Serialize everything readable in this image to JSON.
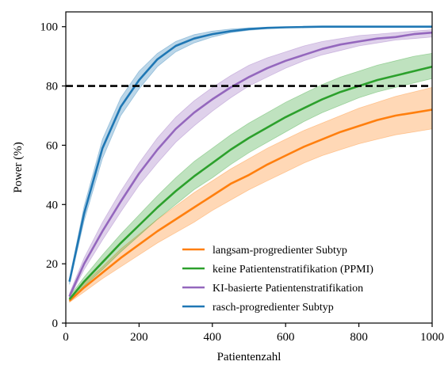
{
  "chart_data": {
    "type": "line",
    "xlabel": "Patientenzahl",
    "ylabel": "Power (%)",
    "xlim": [
      0,
      1000
    ],
    "ylim": [
      0,
      105
    ],
    "x_ticks": [
      0,
      200,
      400,
      600,
      800,
      1000
    ],
    "y_ticks": [
      0,
      20,
      40,
      60,
      80,
      100
    ],
    "grid": false,
    "legend_position": "lower-right",
    "reference_line": {
      "y": 80,
      "style": "dashed",
      "color": "#000000"
    },
    "series": [
      {
        "name": "langsam-progredienter Subtyp",
        "color": "#ff7f0e",
        "x": [
          10,
          50,
          100,
          150,
          200,
          250,
          300,
          350,
          400,
          450,
          500,
          550,
          600,
          650,
          700,
          750,
          800,
          850,
          900,
          950,
          1000
        ],
        "y": [
          7.5,
          12,
          17,
          22,
          26.5,
          31,
          35,
          39,
          43,
          47,
          50,
          53.5,
          56.5,
          59.5,
          62,
          64.5,
          66.5,
          68.5,
          70,
          71,
          72
        ],
        "band_low": [
          7,
          10.5,
          15,
          19,
          23,
          27,
          30.5,
          34,
          38,
          41.5,
          45,
          48,
          51,
          54,
          56.5,
          58.5,
          60.5,
          62,
          63.5,
          64.5,
          65.5
        ],
        "band_high": [
          8.5,
          13.5,
          19,
          25,
          30,
          35,
          39.5,
          44,
          48,
          52,
          55.5,
          59,
          62,
          65,
          67.5,
          70,
          72.5,
          74.5,
          76.5,
          78,
          79.5
        ]
      },
      {
        "name": "keine Patientenstratifikation (PPMI)",
        "color": "#2ca02c",
        "x": [
          10,
          50,
          100,
          150,
          200,
          250,
          300,
          350,
          400,
          450,
          500,
          550,
          600,
          650,
          700,
          750,
          800,
          850,
          900,
          950,
          1000
        ],
        "y": [
          8,
          14,
          20.5,
          27,
          33,
          39,
          44.5,
          49.5,
          54,
          58.5,
          62.5,
          66,
          69.5,
          72.5,
          75.5,
          78,
          80,
          82,
          83.5,
          85,
          86.5
        ],
        "band_low": [
          7.5,
          12.5,
          18,
          24,
          29.5,
          35,
          40,
          45,
          49,
          53.5,
          57.5,
          61,
          64.5,
          68,
          71,
          73.5,
          76,
          78,
          79.5,
          81,
          82.5
        ],
        "band_high": [
          9,
          15.5,
          23,
          30,
          36.5,
          43,
          49,
          54.5,
          59,
          63.5,
          67.5,
          71,
          74.5,
          77.5,
          80.5,
          83,
          85,
          87,
          88.5,
          90,
          91
        ]
      },
      {
        "name": "KI-basierte Patientenstratifikation",
        "color": "#9467bd",
        "x": [
          10,
          50,
          100,
          150,
          200,
          250,
          300,
          350,
          400,
          450,
          500,
          550,
          600,
          650,
          700,
          750,
          800,
          850,
          900,
          950,
          1000
        ],
        "y": [
          9,
          20,
          31,
          41,
          50.5,
          58.5,
          65.5,
          71,
          75.5,
          79.5,
          83,
          86,
          88.5,
          90.5,
          92.5,
          94,
          95,
          96,
          96.5,
          97.5,
          98
        ],
        "band_low": [
          8.5,
          18,
          28,
          37.5,
          46.5,
          54,
          61,
          66.5,
          71.5,
          76,
          80,
          83,
          86,
          88.5,
          90.5,
          92,
          93.5,
          94.5,
          95.5,
          96,
          96.5
        ],
        "band_high": [
          10,
          22,
          34,
          44.5,
          54,
          62.5,
          69.5,
          75,
          79.5,
          83.5,
          87,
          89.5,
          91.5,
          93.5,
          95,
          96,
          97,
          97.5,
          98,
          98.5,
          99
        ]
      },
      {
        "name": "rasch-progredienter Subtyp",
        "color": "#1f77b4",
        "x": [
          10,
          50,
          100,
          150,
          200,
          250,
          300,
          350,
          400,
          450,
          500,
          550,
          600,
          650,
          700,
          750,
          800,
          850,
          900,
          950,
          1000
        ],
        "y": [
          14,
          37,
          59,
          73,
          82,
          89,
          93.5,
          96,
          97.5,
          98.5,
          99.2,
          99.6,
          99.8,
          99.9,
          100,
          100,
          100,
          100,
          100,
          100,
          100
        ],
        "band_low": [
          13,
          34.5,
          55.5,
          70,
          79,
          86.5,
          91.5,
          94.5,
          96.5,
          98,
          98.8,
          99.3,
          99.6,
          99.8,
          99.9,
          100,
          100,
          100,
          100,
          100,
          100
        ],
        "band_high": [
          15,
          39.5,
          62,
          76,
          85,
          91,
          95,
          97.3,
          98.5,
          99.2,
          99.6,
          99.8,
          99.9,
          100,
          100,
          100,
          100,
          100,
          100,
          100,
          100
        ]
      }
    ]
  }
}
